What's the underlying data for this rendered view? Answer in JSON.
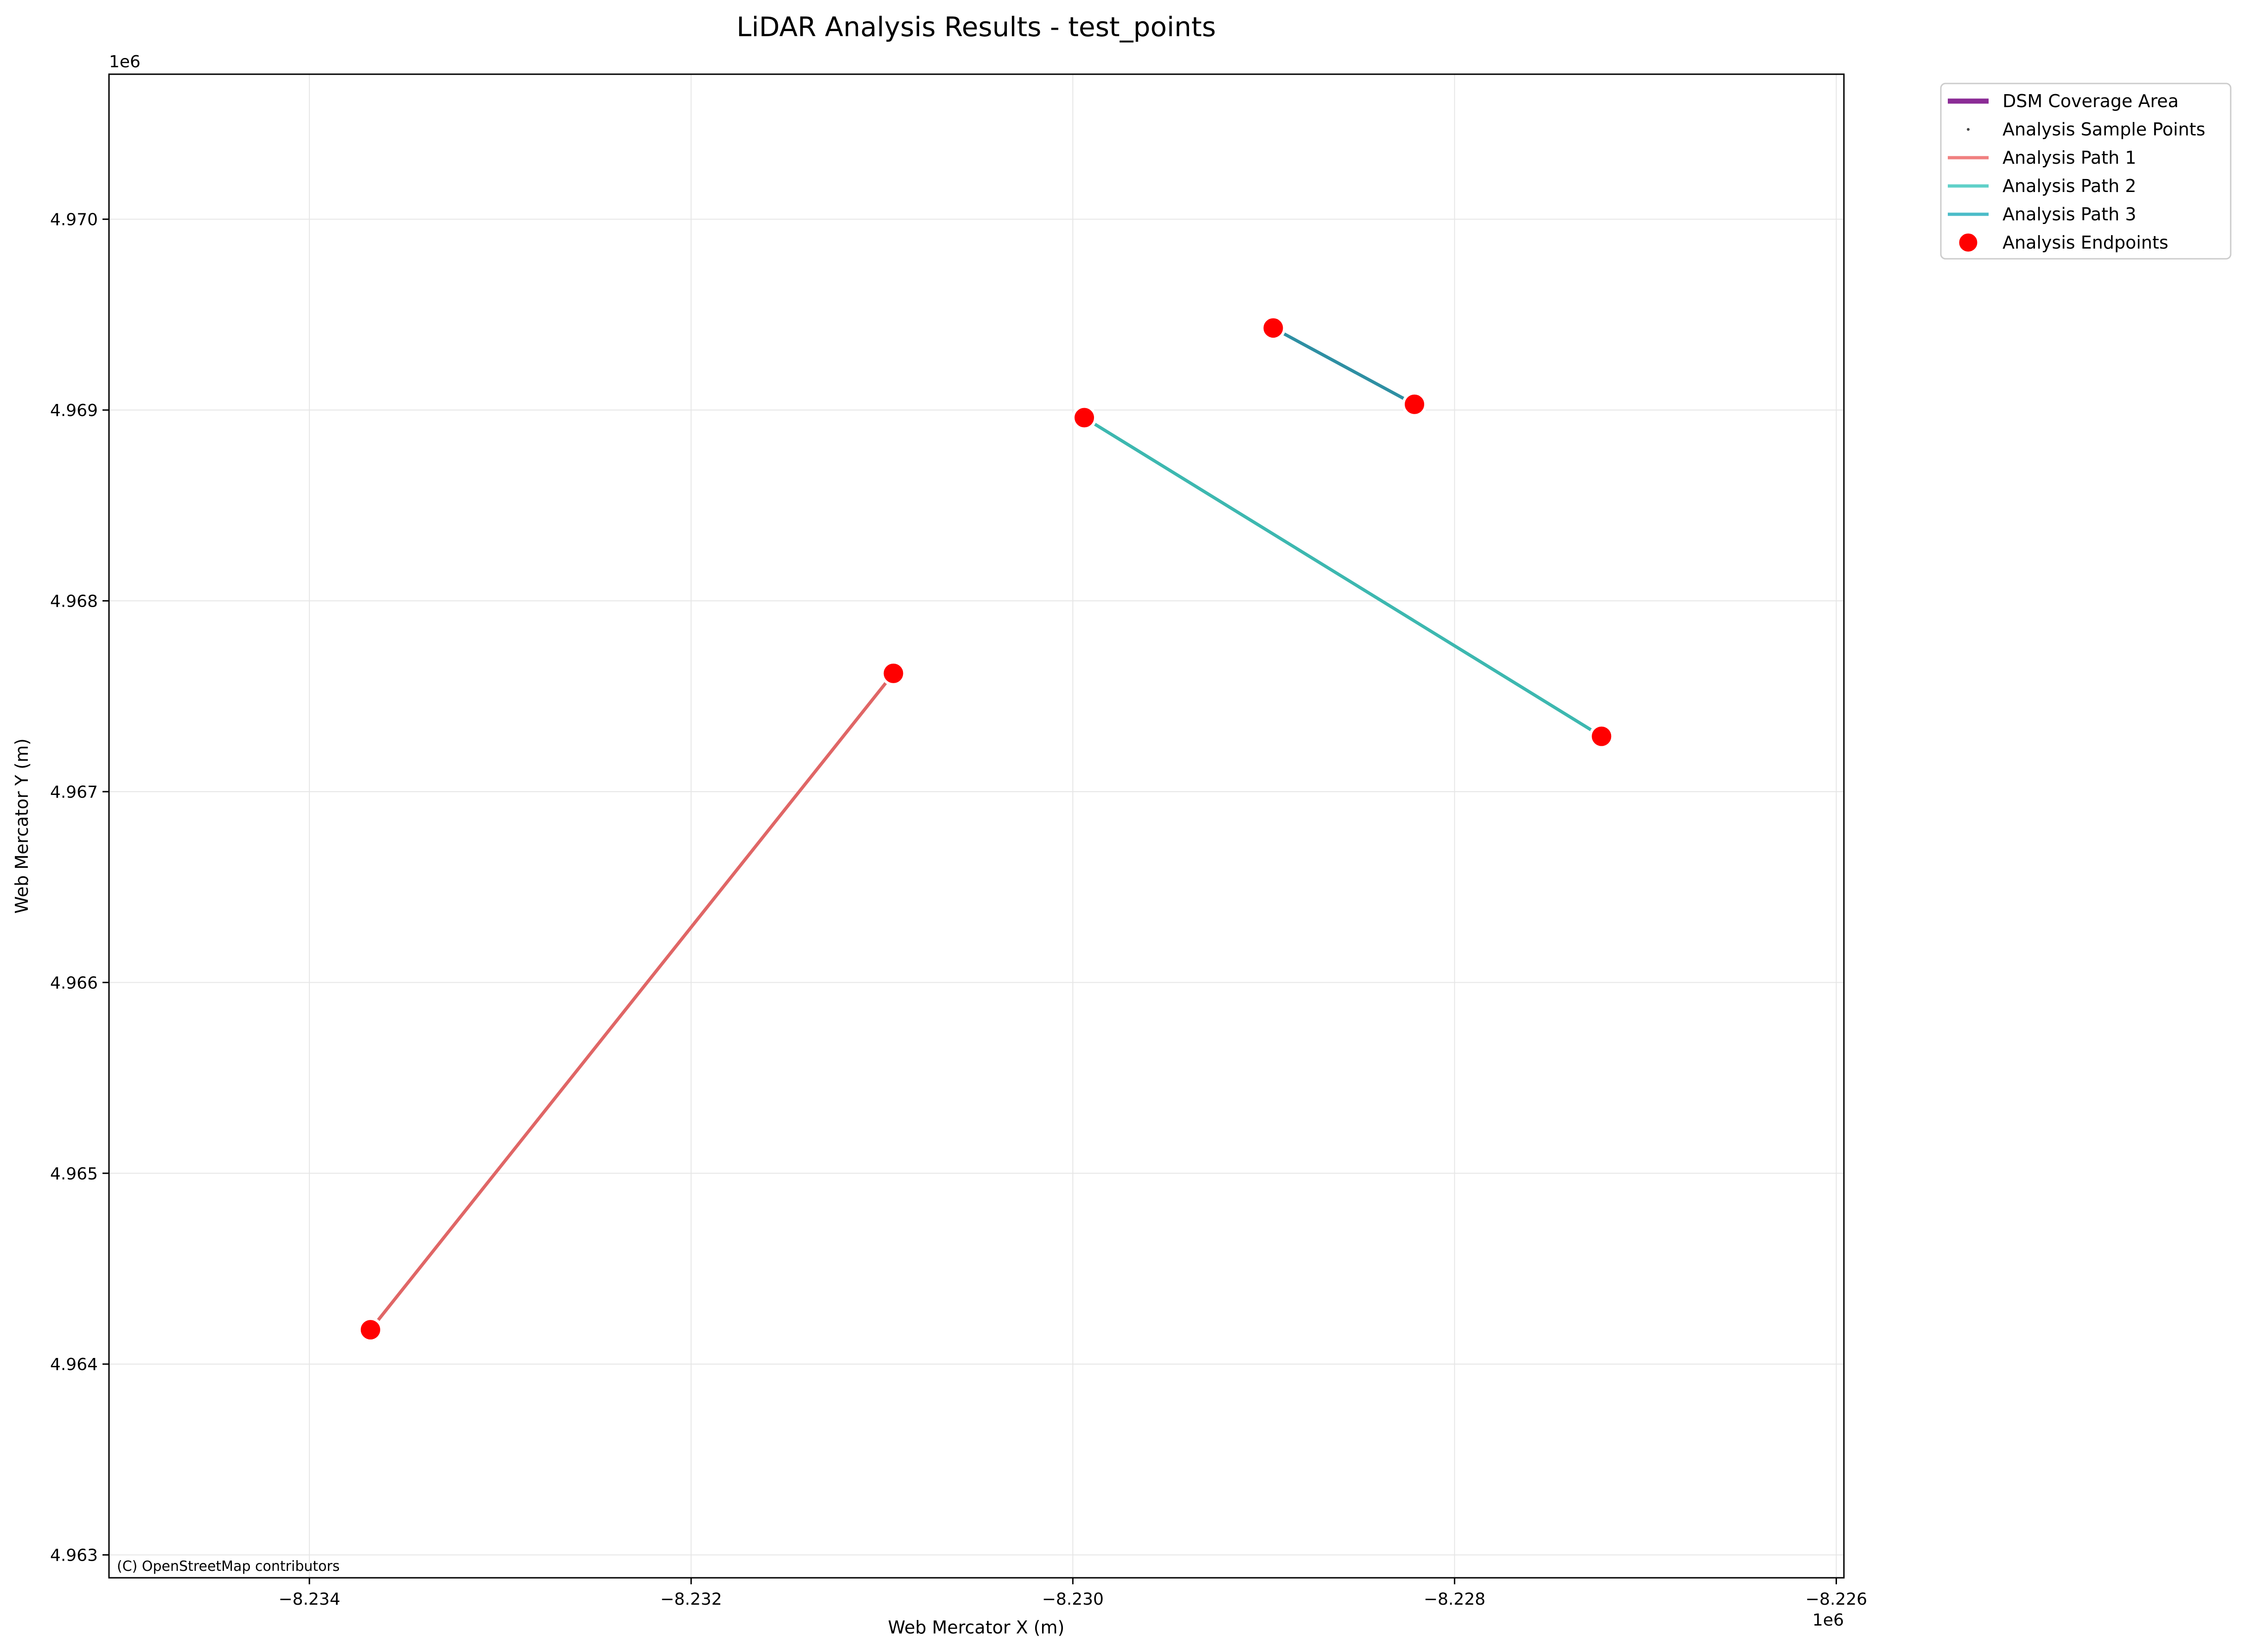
{
  "chart_data": {
    "type": "line",
    "title": "LiDAR Analysis Results - test_points",
    "xlabel": "Web Mercator X (m)",
    "ylabel": "Web Mercator Y (m)",
    "x_offset_label": "1e6",
    "y_offset_label": "1e6",
    "xlim": [
      -8.23505,
      -8.22596
    ],
    "ylim": [
      4.96288,
      4.97076
    ],
    "x_ticks": [
      -8.234,
      -8.232,
      -8.23,
      -8.228,
      -8.226
    ],
    "x_tick_labels": [
      "−8.234",
      "−8.232",
      "−8.230",
      "−8.228",
      "−8.226"
    ],
    "y_ticks": [
      4.963,
      4.964,
      4.965,
      4.966,
      4.967,
      4.968,
      4.969,
      4.97
    ],
    "y_tick_labels": [
      "4.963",
      "4.964",
      "4.965",
      "4.966",
      "4.967",
      "4.968",
      "4.969",
      "4.970"
    ],
    "grid": true,
    "legend_position": "outside-top-right",
    "attribution": "(C) OpenStreetMap contributors",
    "legend": [
      {
        "label": "DSM Coverage Area",
        "kind": "thick-line",
        "color": "#8b2c96"
      },
      {
        "label": "Analysis Sample Points",
        "kind": "dot",
        "color": "#444444"
      },
      {
        "label": "Analysis Path 1",
        "kind": "line",
        "color": "#f08080"
      },
      {
        "label": "Analysis Path 2",
        "kind": "line",
        "color": "#5fd0c8"
      },
      {
        "label": "Analysis Path 3",
        "kind": "line",
        "color": "#4bbcc8"
      },
      {
        "label": "Analysis Endpoints",
        "kind": "marker",
        "color": "#ff0000"
      }
    ],
    "series": [
      {
        "name": "Analysis Path 1",
        "color": "#e06666",
        "x": [
          -8.23368,
          -8.23094
        ],
        "y": [
          4.96418,
          4.96762
        ]
      },
      {
        "name": "Analysis Path 2",
        "color": "#3db8b0",
        "x": [
          -8.22994,
          -8.22723
        ],
        "y": [
          4.96896,
          4.96729
        ]
      },
      {
        "name": "Analysis Path 3",
        "color": "#2e8fa3",
        "x": [
          -8.22895,
          -8.22821
        ],
        "y": [
          4.96943,
          4.96903
        ]
      }
    ],
    "endpoints": {
      "color": "#ff0000",
      "x": [
        -8.23368,
        -8.23094,
        -8.22994,
        -8.22723,
        -8.22895,
        -8.22821
      ],
      "y": [
        4.96418,
        4.96762,
        4.96896,
        4.96729,
        4.96943,
        4.96903
      ]
    }
  }
}
